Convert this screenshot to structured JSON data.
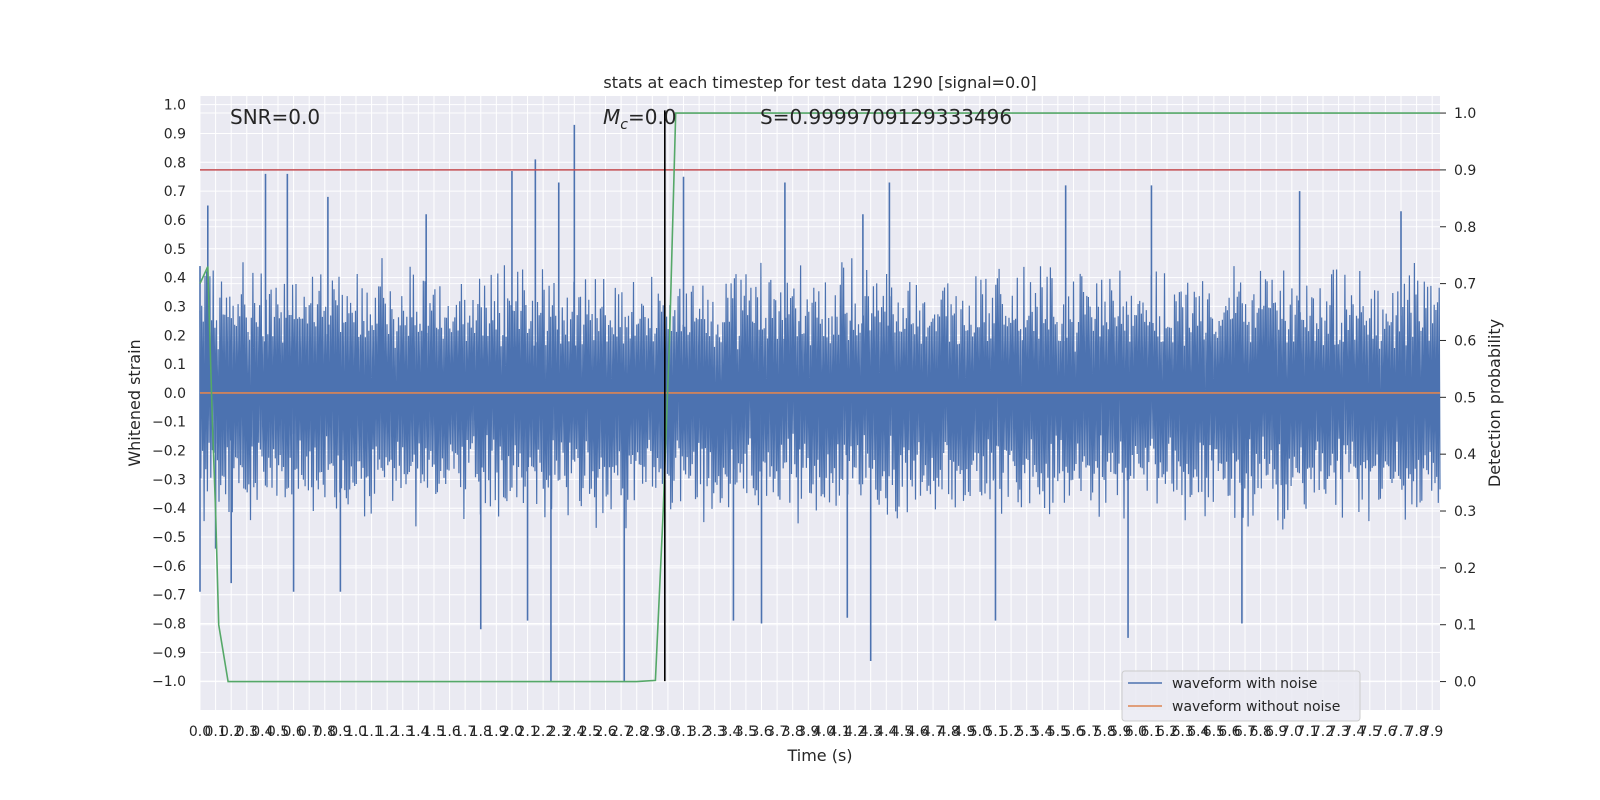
{
  "chart_data": {
    "type": "line",
    "title": "stats at each timestep for test data 1290 [signal=0.0]",
    "xlabel": "Time (s)",
    "ylabel": "Whitened strain",
    "y2label": "Detection probability",
    "xlim": [
      0.0,
      7.95
    ],
    "ylim": [
      -1.1,
      1.03
    ],
    "y2lim": [
      -0.05,
      1.03
    ],
    "x_ticks": [
      0.0,
      0.1,
      0.2,
      0.3,
      0.4,
      0.5,
      0.6,
      0.7,
      0.8,
      0.9,
      1.0,
      1.1,
      1.2,
      1.3,
      1.4,
      1.5,
      1.6,
      1.7,
      1.8,
      1.9,
      2.0,
      2.1,
      2.2,
      2.3,
      2.4,
      2.5,
      2.6,
      2.7,
      2.8,
      2.9,
      3.0,
      3.1,
      3.2,
      3.3,
      3.4,
      3.5,
      3.6,
      3.7,
      3.8,
      3.9,
      4.0,
      4.1,
      4.2,
      4.3,
      4.4,
      4.5,
      4.6,
      4.7,
      4.8,
      4.9,
      5.0,
      5.1,
      5.2,
      5.3,
      5.4,
      5.5,
      5.6,
      5.7,
      5.8,
      5.9,
      6.0,
      6.1,
      6.2,
      6.3,
      6.4,
      6.5,
      6.6,
      6.7,
      6.8,
      6.9,
      7.0,
      7.1,
      7.2,
      7.3,
      7.4,
      7.5,
      7.6,
      7.7,
      7.8,
      7.9
    ],
    "y_ticks": [
      1.0,
      0.9,
      0.8,
      0.7,
      0.6,
      0.5,
      0.4,
      0.3,
      0.2,
      0.1,
      0.0,
      -0.1,
      -0.2,
      -0.3,
      -0.4,
      -0.5,
      -0.6,
      -0.7,
      -0.8,
      -0.9,
      -1.0
    ],
    "y_tick_labels": [
      "1.0",
      "0.9",
      "0.8",
      "0.7",
      "0.6",
      "0.5",
      "0.4",
      "0.3",
      "0.2",
      "0.1",
      "0.0",
      "−0.1",
      "−0.2",
      "−0.3",
      "−0.4",
      "−0.5",
      "−0.6",
      "−0.7",
      "−0.8",
      "−0.9",
      "−1.0"
    ],
    "y2_ticks": [
      1.0,
      0.9,
      0.8,
      0.7,
      0.6,
      0.5,
      0.4,
      0.3,
      0.2,
      0.1,
      0.0
    ],
    "grid": true,
    "legend_placement": "lower-right",
    "annotations": {
      "snr": "SNR=0.0",
      "mc_symbol": "M",
      "mc_sub": "c",
      "mc_value": "=0.0",
      "score": "S=0.9999709129333496"
    },
    "series": [
      {
        "name": "waveform with noise",
        "color": "#4c72b0",
        "kind": "noise",
        "envelope_typical": [
          -0.42,
          0.42
        ],
        "peaks": [
          {
            "x": 0.0,
            "y": 0.44
          },
          {
            "x": 0.0,
            "y": -0.69
          },
          {
            "x": 0.05,
            "y": 0.65
          },
          {
            "x": 0.1,
            "y": -0.54
          },
          {
            "x": 0.2,
            "y": -0.66
          },
          {
            "x": 0.42,
            "y": 0.76
          },
          {
            "x": 0.56,
            "y": 0.76
          },
          {
            "x": 0.6,
            "y": -0.69
          },
          {
            "x": 0.82,
            "y": 0.68
          },
          {
            "x": 0.9,
            "y": -0.69
          },
          {
            "x": 1.45,
            "y": 0.62
          },
          {
            "x": 1.8,
            "y": -0.82
          },
          {
            "x": 2.0,
            "y": 0.77
          },
          {
            "x": 2.15,
            "y": 0.81
          },
          {
            "x": 2.1,
            "y": -0.79
          },
          {
            "x": 2.3,
            "y": 0.73
          },
          {
            "x": 2.4,
            "y": 0.93
          },
          {
            "x": 2.25,
            "y": -1.0
          },
          {
            "x": 2.72,
            "y": -1.0
          },
          {
            "x": 3.1,
            "y": 0.75
          },
          {
            "x": 3.42,
            "y": -0.79
          },
          {
            "x": 3.6,
            "y": -0.8
          },
          {
            "x": 3.75,
            "y": 0.73
          },
          {
            "x": 4.15,
            "y": -0.78
          },
          {
            "x": 4.25,
            "y": 0.62
          },
          {
            "x": 4.3,
            "y": -0.93
          },
          {
            "x": 4.42,
            "y": 0.73
          },
          {
            "x": 5.1,
            "y": -0.79
          },
          {
            "x": 5.55,
            "y": 0.72
          },
          {
            "x": 5.95,
            "y": -0.85
          },
          {
            "x": 6.1,
            "y": 0.72
          },
          {
            "x": 6.68,
            "y": -0.8
          },
          {
            "x": 7.05,
            "y": 0.7
          },
          {
            "x": 7.7,
            "y": 0.63
          }
        ]
      },
      {
        "name": "waveform without noise",
        "color": "#dd8452",
        "x": [
          0.0,
          7.95
        ],
        "y": [
          0.0,
          0.0
        ]
      }
    ],
    "detection_probability": {
      "color": "#55a868",
      "axis": "right",
      "x": [
        0.0,
        0.05,
        0.08,
        0.1,
        0.12,
        0.18,
        2.8,
        2.92,
        2.97,
        3.01,
        3.05,
        7.95
      ],
      "y": [
        0.7,
        0.73,
        0.45,
        0.3,
        0.1,
        0.0,
        0.0,
        0.002,
        0.3,
        0.6,
        1.0,
        1.0
      ]
    },
    "threshold": {
      "color": "#c44e52",
      "axis": "right",
      "value": 0.9
    },
    "vertical_marker": {
      "color": "#000000",
      "x": 2.98,
      "ymin": -1.0,
      "ymax": 0.98
    }
  }
}
